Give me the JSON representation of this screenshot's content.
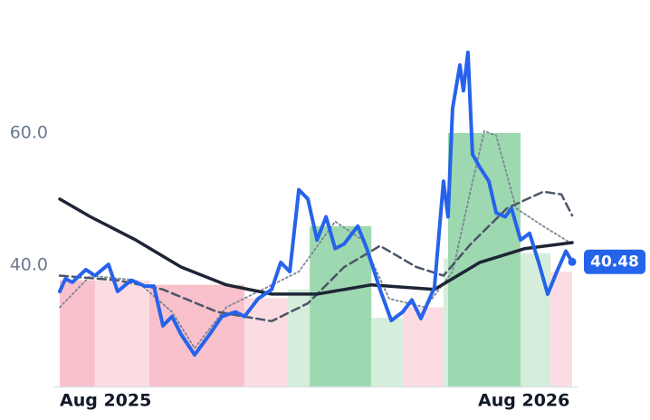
{
  "chart_data": {
    "type": "line",
    "xlim": [
      0,
      14.7
    ],
    "xticks": [
      {
        "value": 0,
        "label": "Aug 2025"
      },
      {
        "value": 12,
        "label": "Aug 2026"
      }
    ],
    "ylim": [
      21.6,
      77.4
    ],
    "yticks": [
      {
        "value": 40,
        "label": "40.0"
      },
      {
        "value": 60,
        "label": "60.0"
      }
    ],
    "grid": false,
    "bands": [
      {
        "x": [
          0,
          1.01
        ],
        "value": 37.7,
        "color": "#f8c1cc"
      },
      {
        "x": [
          1.01,
          2.57
        ],
        "value": 37.7,
        "color": "#fcdce3"
      },
      {
        "x": [
          2.57,
          5.3
        ],
        "value": 37.0,
        "color": "#f8c1cc"
      },
      {
        "x": [
          5.3,
          6.55
        ],
        "value": 35.0,
        "color": "#fcdce3"
      },
      {
        "x": [
          6.55,
          7.17
        ],
        "value": 36.3,
        "color": "#d5eedc"
      },
      {
        "x": [
          7.17,
          8.94
        ],
        "value": 45.9,
        "color": "#9dd8b1"
      },
      {
        "x": [
          8.94,
          9.84
        ],
        "value": 32.0,
        "color": "#d5eedc"
      },
      {
        "x": [
          9.84,
          11.01
        ],
        "value": 33.6,
        "color": "#fcdce3"
      },
      {
        "x": [
          11.01,
          11.14
        ],
        "value": 41.0,
        "color": "#d5eedc"
      },
      {
        "x": [
          11.14,
          13.22
        ],
        "value": 60.0,
        "color": "#9dd8b1"
      },
      {
        "x": [
          13.22,
          14.08
        ],
        "value": 41.8,
        "color": "#d5eedc"
      },
      {
        "x": [
          14.08,
          14.7
        ],
        "value": 39.0,
        "color": "#fcdce3"
      }
    ],
    "series": [
      {
        "color": "#2563eb",
        "style": "solid",
        "width": 4,
        "x": [
          0,
          0.16,
          0.36,
          0.75,
          1.01,
          1.4,
          1.66,
          2.05,
          2.44,
          2.7,
          2.96,
          3.22,
          3.48,
          3.87,
          4.26,
          4.65,
          5.04,
          5.3,
          5.69,
          6.08,
          6.34,
          6.6,
          6.86,
          7.12,
          7.38,
          7.64,
          7.9,
          8.16,
          8.55,
          8.81,
          9.19,
          9.51,
          9.84,
          10.1,
          10.36,
          10.75,
          11.01,
          11.14,
          11.27,
          11.48,
          11.58,
          11.71,
          11.84,
          12.05,
          12.31,
          12.52,
          12.78,
          12.96,
          13.22,
          13.48,
          13.74,
          14.0,
          14.26,
          14.52,
          14.7
        ],
        "values": [
          36.0,
          37.9,
          37.4,
          39.3,
          38.4,
          40.1,
          36.0,
          37.7,
          36.8,
          36.8,
          30.8,
          32.2,
          29.5,
          26.4,
          29.2,
          32.2,
          32.9,
          32.2,
          34.9,
          36.3,
          40.4,
          39.0,
          51.4,
          50.0,
          43.8,
          47.3,
          42.5,
          43.2,
          45.9,
          42.5,
          36.3,
          31.6,
          32.9,
          34.7,
          31.9,
          36.6,
          52.7,
          47.3,
          63.7,
          70.3,
          66.4,
          72.2,
          56.8,
          54.8,
          52.7,
          47.9,
          47.3,
          48.6,
          43.8,
          44.8,
          40.4,
          35.6,
          39.0,
          42.1,
          40.48
        ]
      },
      {
        "color": "#1e2535",
        "style": "solid",
        "width": 3.5,
        "x": [
          0,
          0.88,
          2.18,
          3.48,
          4.78,
          6.08,
          7.38,
          8.94,
          10.75,
          12.05,
          13.35,
          14.7
        ],
        "values": [
          50.0,
          47.3,
          43.8,
          39.7,
          37.0,
          35.6,
          35.6,
          37.0,
          36.3,
          40.4,
          42.5,
          43.4
        ]
      },
      {
        "color": "#4b5568",
        "style": "dashed",
        "width": 2.5,
        "x": [
          0,
          1.66,
          2.96,
          4.52,
          6.08,
          7.12,
          8.16,
          9.19,
          10.23,
          11.01,
          11.79,
          12.83,
          13.87,
          14.39,
          14.7
        ],
        "values": [
          38.4,
          37.7,
          36.3,
          32.9,
          31.5,
          34.2,
          39.7,
          42.9,
          39.7,
          38.4,
          43.2,
          48.6,
          51.1,
          50.7,
          47.5
        ]
      },
      {
        "color": "#7c8594",
        "style": "dotted",
        "width": 1.8,
        "x": [
          0,
          0.88,
          2.18,
          3.22,
          3.87,
          4.78,
          5.82,
          6.86,
          7.9,
          8.68,
          9.45,
          10.49,
          11.27,
          11.79,
          12.18,
          12.52,
          13.09,
          13.87,
          14.7
        ],
        "values": [
          33.6,
          38.4,
          37.7,
          32.9,
          27.4,
          33.6,
          36.3,
          39.0,
          46.6,
          43.8,
          34.9,
          33.6,
          39.0,
          51.4,
          60.3,
          59.6,
          48.6,
          45.9,
          43.2
        ]
      }
    ]
  }
}
